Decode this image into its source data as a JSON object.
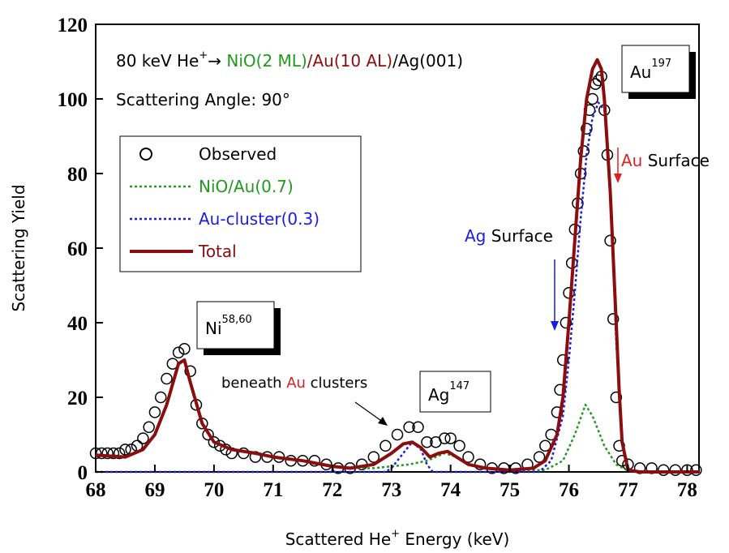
{
  "chart_data": {
    "type": "scatter-line",
    "header": [
      "80 keV He",
      "+",
      "→ ",
      "NiO(2 ML)",
      "/Au(10 AL)",
      "/Ag(001)"
    ],
    "subtitle": "Scattering Angle: 90°",
    "x_label": [
      "Scattered He",
      "+",
      " Energy (keV)"
    ],
    "y_label": "Scattering Yield",
    "peak_labels": [
      [
        "Ni",
        "58,60"
      ],
      [
        "Ag",
        "147"
      ],
      [
        "Au",
        "197"
      ]
    ],
    "annotations": {
      "au_surface": [
        "Au",
        " Surface"
      ],
      "ag_surface": [
        "Ag",
        " Surface"
      ],
      "beneath": [
        "beneath ",
        "Au",
        " clusters"
      ]
    },
    "xlim": [
      68,
      78.2
    ],
    "xticks": [
      68,
      69,
      70,
      71,
      72,
      73,
      74,
      75,
      76,
      77,
      78
    ],
    "ylim": [
      0,
      120
    ],
    "yticks": [
      0,
      20,
      40,
      60,
      80,
      100,
      120
    ],
    "series": [
      {
        "name": "Observed",
        "color": "#000000",
        "style": "circle",
        "x": [
          68.0,
          68.1,
          68.2,
          68.3,
          68.4,
          68.5,
          68.6,
          68.7,
          68.8,
          68.9,
          69.0,
          69.1,
          69.2,
          69.3,
          69.4,
          69.5,
          69.6,
          69.7,
          69.8,
          69.9,
          70.0,
          70.1,
          70.2,
          70.3,
          70.5,
          70.7,
          70.9,
          71.1,
          71.3,
          71.5,
          71.7,
          71.9,
          72.1,
          72.3,
          72.5,
          72.7,
          72.9,
          73.1,
          73.3,
          73.45,
          73.6,
          73.75,
          73.9,
          74.0,
          74.15,
          74.3,
          74.5,
          74.7,
          74.9,
          75.1,
          75.3,
          75.5,
          75.6,
          75.7,
          75.8,
          75.85,
          75.9,
          75.95,
          76.0,
          76.05,
          76.1,
          76.15,
          76.2,
          76.25,
          76.3,
          76.35,
          76.4,
          76.45,
          76.5,
          76.55,
          76.6,
          76.65,
          76.7,
          76.75,
          76.8,
          76.85,
          76.9,
          77.0,
          77.2,
          77.4,
          77.6,
          77.8,
          78.0,
          78.15
        ],
        "values": [
          5,
          5,
          5,
          5,
          5,
          6,
          6,
          7,
          9,
          12,
          16,
          20,
          25,
          29,
          32,
          33,
          27,
          18,
          13,
          10,
          8,
          7,
          6,
          5,
          5,
          4,
          4,
          4,
          3,
          3,
          3,
          2,
          1,
          1,
          2,
          4,
          7,
          10,
          12,
          12,
          8,
          8,
          9,
          9,
          7,
          4,
          2,
          1,
          1,
          1,
          2,
          4,
          7,
          10,
          16,
          22,
          30,
          40,
          48,
          56,
          65,
          72,
          80,
          86,
          92,
          97,
          100,
          104,
          105,
          106,
          97,
          85,
          62,
          41,
          20,
          7,
          3,
          2,
          1,
          1,
          0.5,
          0.5,
          0.5,
          0.5
        ]
      },
      {
        "name": "NiO/Au(0.7)",
        "color": "#1f9a1f",
        "style": "dotted",
        "x": [
          68,
          68.5,
          68.8,
          69,
          69.2,
          69.4,
          69.5,
          69.6,
          69.8,
          70,
          70.3,
          70.7,
          71,
          71.5,
          72,
          72.3,
          72.7,
          73,
          73.3,
          73.6,
          73.9,
          74.1,
          74.3,
          74.6,
          75,
          75.6,
          75.9,
          76.1,
          76.28,
          76.4,
          76.6,
          76.8,
          77,
          77.2,
          78.2
        ],
        "values": [
          4.5,
          4,
          6,
          10,
          18,
          29,
          30,
          24,
          13,
          8,
          6,
          5,
          4,
          3,
          1.5,
          1,
          1,
          1.5,
          2,
          3,
          5,
          4,
          2,
          1,
          0.5,
          0.5,
          3,
          10,
          18,
          15,
          7,
          2,
          0.3,
          0,
          0
        ]
      },
      {
        "name": "Au-cluster(0.3)",
        "color": "#1c1cdc",
        "style": "dotted",
        "x": [
          68,
          72.9,
          73,
          73.2,
          73.35,
          73.5,
          73.6,
          73.7,
          75.5,
          75.7,
          75.9,
          76,
          76.1,
          76.2,
          76.3,
          76.4,
          76.5,
          76.6,
          76.7,
          76.8,
          76.9,
          77,
          77.1,
          78.2
        ],
        "values": [
          0,
          0,
          1,
          5,
          8,
          6,
          2,
          0,
          0,
          3,
          15,
          30,
          48,
          68,
          85,
          95,
          99,
          97,
          75,
          35,
          8,
          1,
          0,
          0
        ]
      },
      {
        "name": "Total",
        "color": "#8b0d0d",
        "style": "solid",
        "x": [
          68,
          68.5,
          68.8,
          69,
          69.2,
          69.4,
          69.5,
          69.6,
          69.8,
          70,
          70.3,
          70.7,
          71,
          71.5,
          72,
          72.3,
          72.7,
          73,
          73.2,
          73.35,
          73.5,
          73.65,
          73.8,
          73.95,
          74.1,
          74.3,
          74.6,
          75,
          75.4,
          75.6,
          75.8,
          75.9,
          76,
          76.1,
          76.2,
          76.3,
          76.4,
          76.48,
          76.55,
          76.6,
          76.7,
          76.8,
          76.85,
          76.9,
          77,
          77.2,
          78.2
        ],
        "values": [
          4.5,
          4,
          6,
          10,
          18,
          29,
          30,
          24,
          13,
          8,
          6,
          5,
          4,
          3,
          1.5,
          1,
          2,
          5,
          7.5,
          8,
          6.5,
          4,
          5,
          5.5,
          4,
          2,
          1,
          0.5,
          1,
          3,
          10,
          20,
          40,
          62,
          84,
          100,
          108,
          110.5,
          108,
          100,
          75,
          40,
          22,
          8,
          0.5,
          0,
          0
        ]
      }
    ]
  }
}
